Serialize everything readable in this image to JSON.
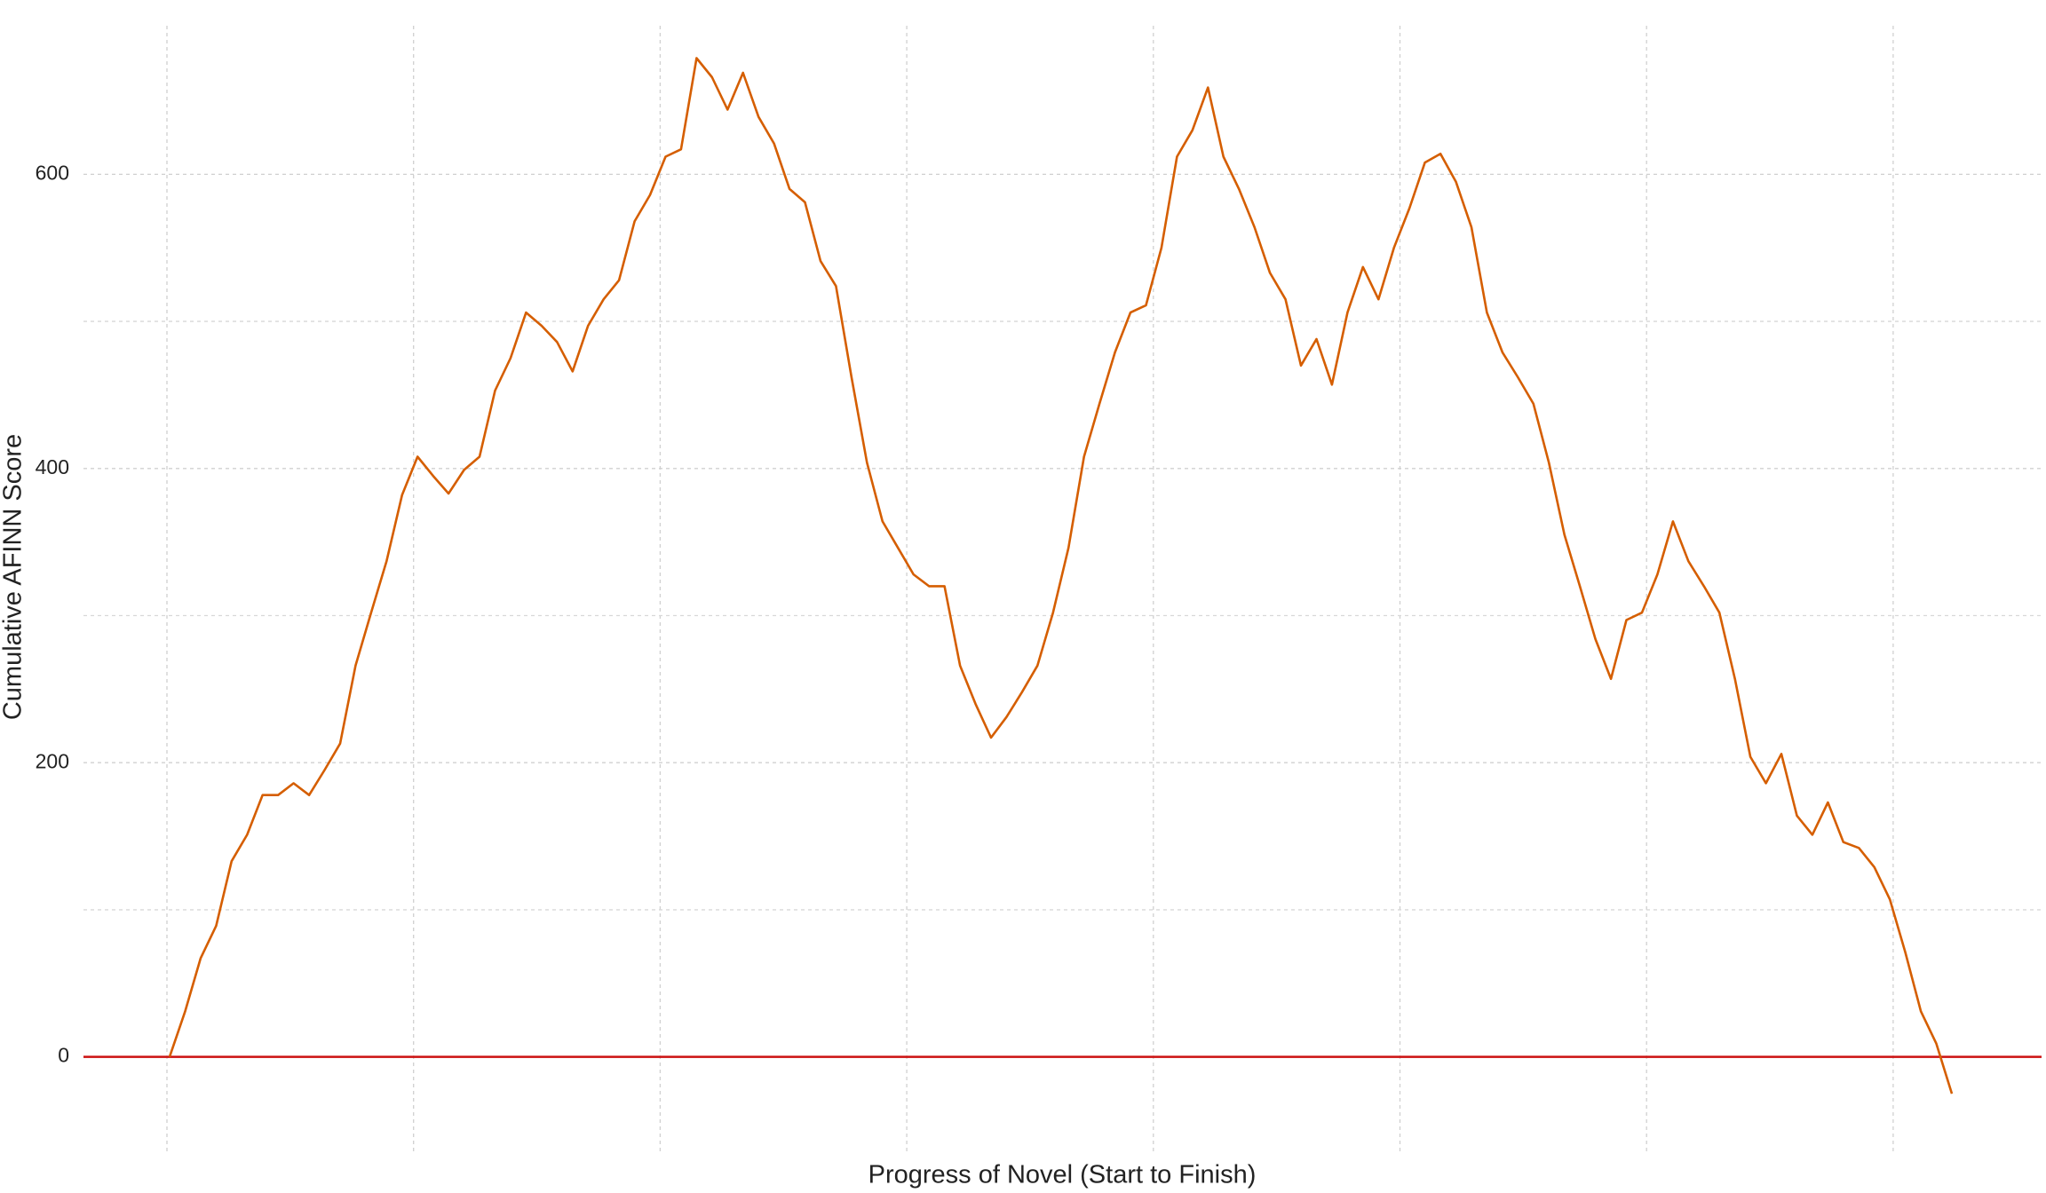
{
  "chart_data": {
    "type": "line",
    "x_label": "Progress of Novel (Start to Finish)",
    "y_label": "Cumulative AFINN Score",
    "color": "#d55e00",
    "hline": 0,
    "hline_color": "#cc1111",
    "ylim": [
      -66,
      701
    ],
    "yticks": [
      0,
      200,
      400,
      600
    ],
    "y_minor_grid": [
      100,
      300,
      500
    ],
    "grid": true,
    "values": [
      0,
      31,
      67,
      89,
      133,
      151,
      178,
      178,
      186,
      178,
      195,
      213,
      266,
      302,
      337,
      382,
      408,
      395,
      383,
      399,
      408,
      453,
      475,
      506,
      497,
      486,
      466,
      497,
      515,
      528,
      568,
      586,
      612,
      617,
      679,
      666,
      644,
      669,
      639,
      621,
      590,
      581,
      541,
      524,
      462,
      404,
      364,
      346,
      328,
      320,
      320,
      266,
      240,
      217,
      231,
      248,
      266,
      302,
      346,
      408,
      444,
      479,
      506,
      511,
      550,
      612,
      630,
      659,
      612,
      590,
      564,
      533,
      515,
      470,
      488,
      457,
      506,
      537,
      515,
      550,
      577,
      608,
      614,
      595,
      564,
      506,
      479,
      462,
      444,
      404,
      355,
      320,
      284,
      257,
      297,
      302,
      328,
      364,
      337,
      320,
      302,
      257,
      204,
      186,
      206,
      164,
      151,
      173,
      146,
      142,
      129,
      107,
      71,
      31,
      9,
      -25
    ]
  }
}
